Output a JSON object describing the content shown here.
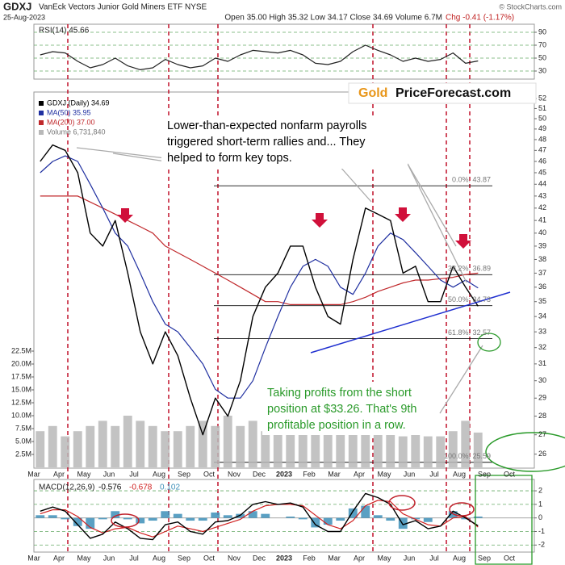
{
  "header": {
    "symbol": "GDXJ",
    "name": "VanEck Vectors Junior Gold Miners ETF  NYSE",
    "date": "25-Aug-2023",
    "quote": "Open 35.00 High 35.32 Low 34.17 Close 34.69 Volume 6.7M",
    "change": "Chg -0.41 (-1.17%)",
    "copyright": "© StockCharts.com"
  },
  "logo": {
    "gold": "Gold",
    "site": "PriceForecast.com"
  },
  "annotations": [
    [
      "Lower-than-expected nonfarm payrolls",
      "triggered short-term rallies and... They",
      "helped to form key tops."
    ],
    [
      "Taking profits from the short",
      "position at $33.26. That's 9th",
      "profitable position in a row."
    ]
  ],
  "chart_data": [
    {
      "type": "line",
      "title": "RSI(14) 45.66",
      "categories": [
        "Mar",
        null,
        "Apr",
        null,
        "May",
        null,
        "Jun",
        null,
        "Jul",
        null,
        "Aug",
        null,
        "Sep",
        null,
        "Oct",
        null,
        "Nov",
        null,
        "Dec",
        null,
        "2023",
        null,
        "Feb",
        null,
        "Mar",
        null,
        "Apr",
        null,
        "May",
        null,
        "Jun",
        null,
        "Jul",
        null,
        "Aug",
        null,
        "Sep",
        null,
        "Oct",
        null
      ],
      "values": [
        55,
        60,
        58,
        45,
        35,
        40,
        50,
        38,
        32,
        35,
        48,
        40,
        35,
        38,
        50,
        45,
        55,
        62,
        60,
        58,
        62,
        55,
        42,
        40,
        45,
        60,
        70,
        62,
        55,
        45,
        50,
        45,
        48,
        58,
        42,
        45.66,
        null,
        null,
        null,
        null
      ],
      "color": "#222222",
      "ylim": [
        20,
        100
      ],
      "yticks": [
        30,
        50,
        70,
        90
      ],
      "grid": true
    },
    {
      "type": "line",
      "categories": [
        "Mar",
        null,
        "Apr",
        null,
        "May",
        null,
        "Jun",
        null,
        "Jul",
        null,
        "Aug",
        null,
        "Sep",
        null,
        "Oct",
        null,
        "Nov",
        null,
        "Dec",
        null,
        "2023",
        null,
        "Feb",
        null,
        "Mar",
        null,
        "Apr",
        null,
        "May",
        null,
        "Jun",
        null,
        "Jul",
        null,
        "Aug",
        null,
        "Sep",
        null,
        "Oct",
        null
      ],
      "log_scale": true,
      "grid": false,
      "ylim": [
        25.5,
        52.5
      ],
      "yticks": [
        26,
        27,
        28,
        29,
        30,
        31,
        32,
        33,
        34,
        35,
        36,
        37,
        38,
        39,
        40,
        41,
        42,
        43,
        44,
        45,
        46,
        47,
        48,
        49,
        50,
        51,
        52
      ],
      "y2lim": [
        0,
        22500000
      ],
      "y2ticks": [
        {
          "value": 2500000,
          "label": "2.5M"
        },
        {
          "value": 5000000,
          "label": "5.0M"
        },
        {
          "value": 7500000,
          "label": "7.5M"
        },
        {
          "value": 10000000,
          "label": "10.0M"
        },
        {
          "value": 12500000,
          "label": "12.5M"
        },
        {
          "value": 15000000,
          "label": "15.0M"
        },
        {
          "value": 17500000,
          "label": "17.5M"
        },
        {
          "value": 20000000,
          "label": "20.0M"
        },
        {
          "value": 22500000,
          "label": "22.5M"
        }
      ],
      "series": [
        {
          "name": "Volume 6,731,840",
          "type": "bar",
          "axis": "y2",
          "color": "#b8b8b8",
          "values": [
            7000000,
            8000000,
            6000000,
            7000000,
            8000000,
            9000000,
            8000000,
            10000000,
            9000000,
            8000000,
            7000000,
            7000000,
            8000000,
            9000000,
            8000000,
            10000000,
            8000000,
            9000000,
            7000000,
            8000000,
            7000000,
            9000000,
            8000000,
            7000000,
            9000000,
            8000000,
            10000000,
            9000000,
            7000000,
            6000000,
            7000000,
            6000000,
            6000000,
            7000000,
            9000000,
            6731840,
            null,
            null,
            null,
            null
          ]
        },
        {
          "name": "MA(200) 37.00",
          "color": "#c0282b",
          "values": [
            43,
            43,
            43,
            43,
            42.5,
            42,
            41.5,
            41,
            40.5,
            40,
            39,
            38.5,
            38,
            37.5,
            37,
            36.5,
            36,
            35.5,
            35,
            35,
            34.8,
            34.8,
            34.8,
            34.8,
            34.8,
            35,
            35.3,
            35.7,
            36,
            36.3,
            36.5,
            36.5,
            36.6,
            36.7,
            36.9,
            37,
            null,
            null,
            null,
            null
          ]
        },
        {
          "name": "MA(50) 35.95",
          "color": "#1f2fa0",
          "values": [
            45,
            46,
            46.5,
            46,
            44,
            42,
            40,
            39,
            37,
            35,
            33.5,
            33,
            32,
            31,
            29.5,
            29,
            29,
            30,
            32,
            34,
            36,
            37.5,
            38,
            37.5,
            36,
            35.5,
            37,
            39,
            40,
            39.5,
            38.5,
            37.5,
            36.5,
            36,
            36.5,
            35.95,
            null,
            null,
            null,
            null
          ]
        },
        {
          "name": "GDXJ (Daily) 34.69",
          "color": "#000000",
          "values": [
            46,
            47.5,
            47,
            45,
            40,
            39,
            41,
            37,
            33,
            31,
            33,
            31.5,
            29,
            27,
            29,
            28,
            30,
            34,
            36,
            37,
            39,
            39,
            36,
            34,
            33.5,
            38,
            42,
            41.5,
            41,
            37,
            37.5,
            35,
            35,
            37.5,
            36,
            34.69,
            null,
            null,
            null,
            null
          ]
        }
      ],
      "fib_levels": [
        {
          "value": 43.87,
          "label": "0.0%: 43.87"
        },
        {
          "value": 36.89,
          "label": "38.2%: 36.89"
        },
        {
          "value": 34.73,
          "label": "50.0%: 34.73"
        },
        {
          "value": 32.57,
          "label": "61.8%: 32.57"
        },
        {
          "value": 25.59,
          "label": "100.0%: 25.59"
        }
      ]
    },
    {
      "type": "line",
      "title": "MACD(12,26,9)",
      "categories": [
        "Mar",
        null,
        "Apr",
        null,
        "May",
        null,
        "Jun",
        null,
        "Jul",
        null,
        "Aug",
        null,
        "Sep",
        null,
        "Oct",
        null,
        "Nov",
        null,
        "Dec",
        null,
        "2023",
        null,
        "Feb",
        null,
        "Mar",
        null,
        "Apr",
        null,
        "May",
        null,
        "Jun",
        null,
        "Jul",
        null,
        "Aug",
        null,
        "Sep",
        null,
        "Oct",
        null
      ],
      "ylim": [
        -2.4,
        2.6
      ],
      "yticks": [
        -2,
        -1,
        0,
        1,
        2
      ],
      "grid": true,
      "series": [
        {
          "name": "0.102",
          "type": "bar",
          "color": "#3d8fb8",
          "values": [
            0.2,
            0.2,
            -0.1,
            -0.6,
            -0.8,
            -0.1,
            0.5,
            -0.1,
            -0.4,
            -0.2,
            0.5,
            0.3,
            -0.2,
            -0.2,
            0.4,
            0.2,
            0.3,
            0.5,
            0.3,
            0,
            0.1,
            -0.1,
            -0.7,
            -0.5,
            -0.2,
            0.7,
            0.9,
            0.2,
            -0.2,
            -0.8,
            -0.1,
            -0.3,
            0,
            0.5,
            -0.1,
            0.102,
            null,
            null,
            null,
            null
          ]
        },
        {
          "name": "-0.678",
          "color": "#d02020",
          "values": [
            0.3,
            0.6,
            0.6,
            0.1,
            -0.7,
            -1.1,
            -0.8,
            -0.7,
            -1.1,
            -1.4,
            -1.0,
            -0.6,
            -0.8,
            -1.0,
            -0.7,
            -0.4,
            -0.1,
            0.5,
            0.9,
            1.0,
            1.0,
            0.9,
            0.2,
            -0.5,
            -0.8,
            -0.2,
            0.9,
            1.3,
            1.2,
            0.3,
            -0.1,
            -0.5,
            -0.6,
            0,
            0.1,
            -0.678,
            null,
            null,
            null,
            null
          ]
        },
        {
          "name": "-0.576",
          "color": "#000000",
          "values": [
            0.5,
            0.8,
            0.5,
            -0.5,
            -1.5,
            -1.2,
            -0.3,
            -0.8,
            -1.5,
            -1.6,
            -0.5,
            -0.3,
            -1.0,
            -1.2,
            -0.3,
            -0.2,
            0.2,
            1.0,
            1.2,
            1.0,
            1.1,
            0.8,
            -0.5,
            -1.0,
            -1.0,
            0.5,
            1.8,
            1.5,
            1.0,
            -0.5,
            -0.2,
            -0.8,
            -0.6,
            0.5,
            0,
            -0.576,
            null,
            null,
            null,
            null
          ]
        }
      ]
    }
  ]
}
